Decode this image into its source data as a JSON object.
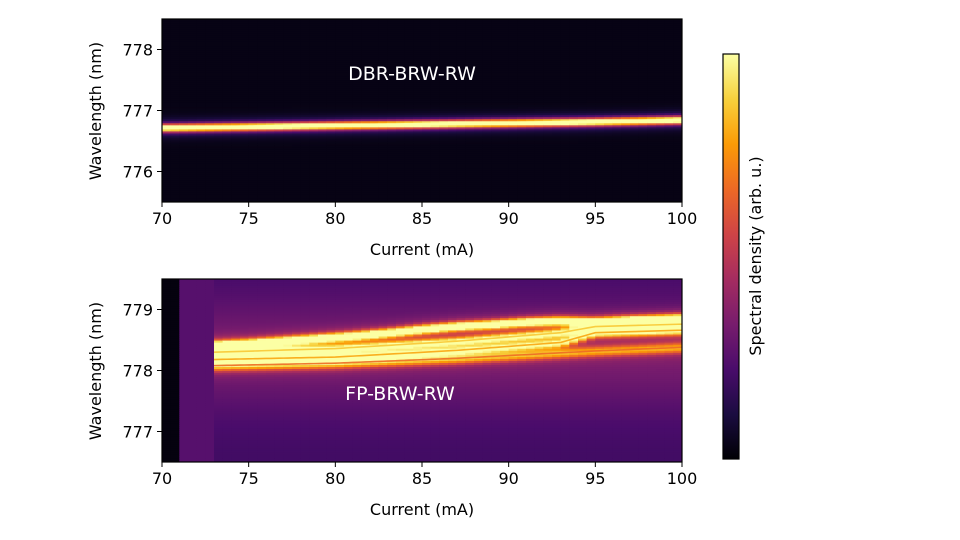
{
  "colors": {
    "colormap": "inferno",
    "stops": [
      "#000004",
      "#1b0c41",
      "#4a0c6b",
      "#781c6d",
      "#a52c60",
      "#cf4446",
      "#ed6925",
      "#fb9b06",
      "#f7d13d",
      "#fcffa4"
    ],
    "axis": "#000000",
    "panel_label": "#ffffff"
  },
  "chart_data": [
    {
      "type": "heatmap",
      "name": "DBR-BRW-RW",
      "annotation": "DBR-BRW-RW",
      "xlabel": "Current (mA)",
      "ylabel": "Wavelength (nm)",
      "xlim": [
        70,
        100
      ],
      "ylim": [
        775.5,
        778.5
      ],
      "xticks": [
        70,
        75,
        80,
        85,
        90,
        95,
        100
      ],
      "yticks": [
        776,
        777,
        778
      ],
      "background_level": 0.03,
      "modes": [
        {
          "current": [
            70,
            75,
            80,
            85,
            90,
            95,
            100
          ],
          "wavelength": [
            776.72,
            776.74,
            776.76,
            776.78,
            776.8,
            776.82,
            776.85
          ],
          "peak": 1.0,
          "width_nm": 0.045
        }
      ]
    },
    {
      "type": "heatmap",
      "name": "FP-BRW-RW",
      "annotation": "FP-BRW-RW",
      "xlabel": "Current (mA)",
      "ylabel": "Wavelength (nm)",
      "xlim": [
        70,
        100
      ],
      "ylim": [
        776.5,
        779.5
      ],
      "xticks": [
        70,
        75,
        80,
        85,
        90,
        95,
        100
      ],
      "yticks": [
        777,
        778,
        779
      ],
      "threshold_current": 73,
      "columns": [
        {
          "from": 70,
          "to": 71,
          "level": 0.02
        },
        {
          "from": 71,
          "to": 73,
          "level": 0.25
        }
      ],
      "modes": [
        {
          "current": [
            73,
            75,
            77,
            79,
            81,
            83,
            85,
            87,
            89,
            91,
            93,
            95,
            97,
            99,
            100
          ],
          "wavelength": [
            778.42,
            778.45,
            778.49,
            778.53,
            778.57,
            778.62,
            778.68,
            778.73,
            778.76,
            778.8,
            778.82,
            778.8,
            778.83,
            778.85,
            778.86
          ],
          "peak": 0.85,
          "width_nm": 0.05
        },
        {
          "current": [
            73,
            80,
            87,
            93,
            95,
            100
          ],
          "wavelength": [
            778.3,
            778.36,
            778.48,
            778.62,
            778.72,
            778.76
          ],
          "peak": 0.62,
          "width_nm": 0.05
        },
        {
          "current": [
            73,
            80,
            87,
            93,
            95,
            100
          ],
          "wavelength": [
            778.18,
            778.22,
            778.33,
            778.46,
            778.62,
            778.66
          ],
          "peak": 0.55,
          "width_nm": 0.05
        },
        {
          "current": [
            73,
            80,
            87,
            95,
            100
          ],
          "wavelength": [
            778.08,
            778.12,
            778.2,
            778.32,
            778.38
          ],
          "peak": 0.42,
          "width_nm": 0.06
        }
      ]
    }
  ],
  "colorbar": {
    "label": "Spectral density (arb. u.)"
  }
}
